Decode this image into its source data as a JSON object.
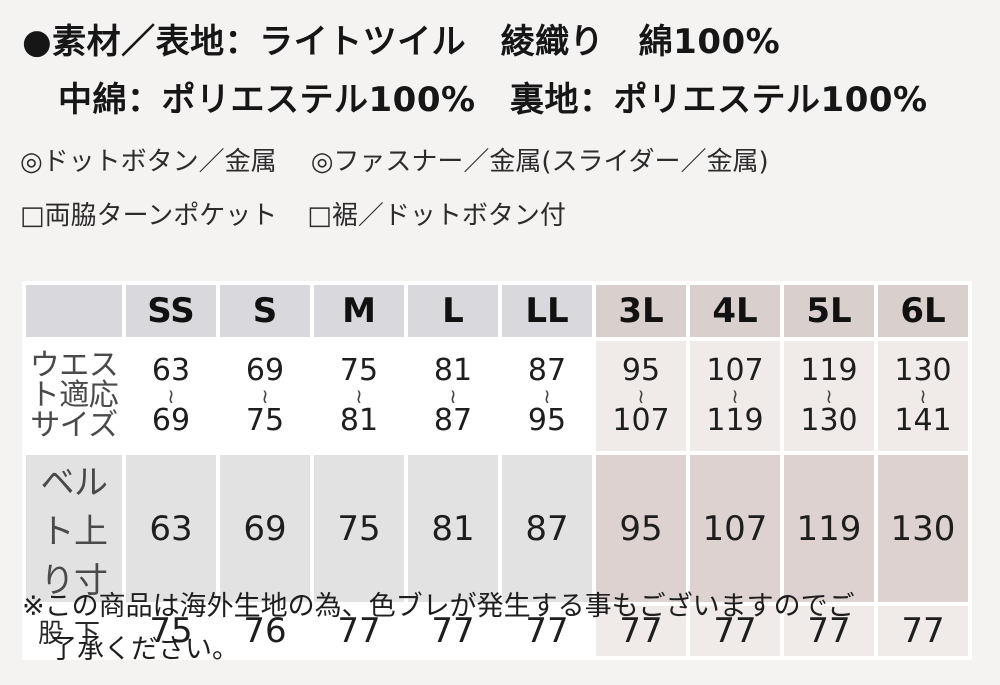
{
  "materials": {
    "line1": "●素材／表地：ライトツイル　綾織り　綿100%",
    "line2": "中綿：ポリエステル100%　裏地：ポリエステル100%"
  },
  "features": {
    "line1_a": "◎ドットボタン／金属",
    "line1_b": "◎ファスナー／金属(スライダー／金属)",
    "line2_a": "□両脇ターンポケット",
    "line2_b": "□裾／ドットボタン付"
  },
  "size_table": {
    "sizes": [
      "SS",
      "S",
      "M",
      "L",
      "LL",
      "3L",
      "4L",
      "5L",
      "6L"
    ],
    "row_labels": {
      "waist": "ウエスト適応サイズ",
      "belt": "ベルト上り寸",
      "inseam": "股下"
    },
    "tilde": "≀",
    "waist_min": [
      "63",
      "69",
      "75",
      "81",
      "87",
      "95",
      "107",
      "119",
      "130"
    ],
    "waist_max": [
      "69",
      "75",
      "81",
      "87",
      "95",
      "107",
      "119",
      "130",
      "141"
    ],
    "belt": [
      "63",
      "69",
      "75",
      "81",
      "87",
      "95",
      "107",
      "119",
      "130"
    ],
    "inseam": [
      "75",
      "76",
      "77",
      "77",
      "77",
      "77",
      "77",
      "77",
      "77"
    ]
  },
  "note": {
    "line1": "※この商品は海外生地の為、色ブレが発生する事もございますのでご",
    "line2": "了承ください。"
  }
}
